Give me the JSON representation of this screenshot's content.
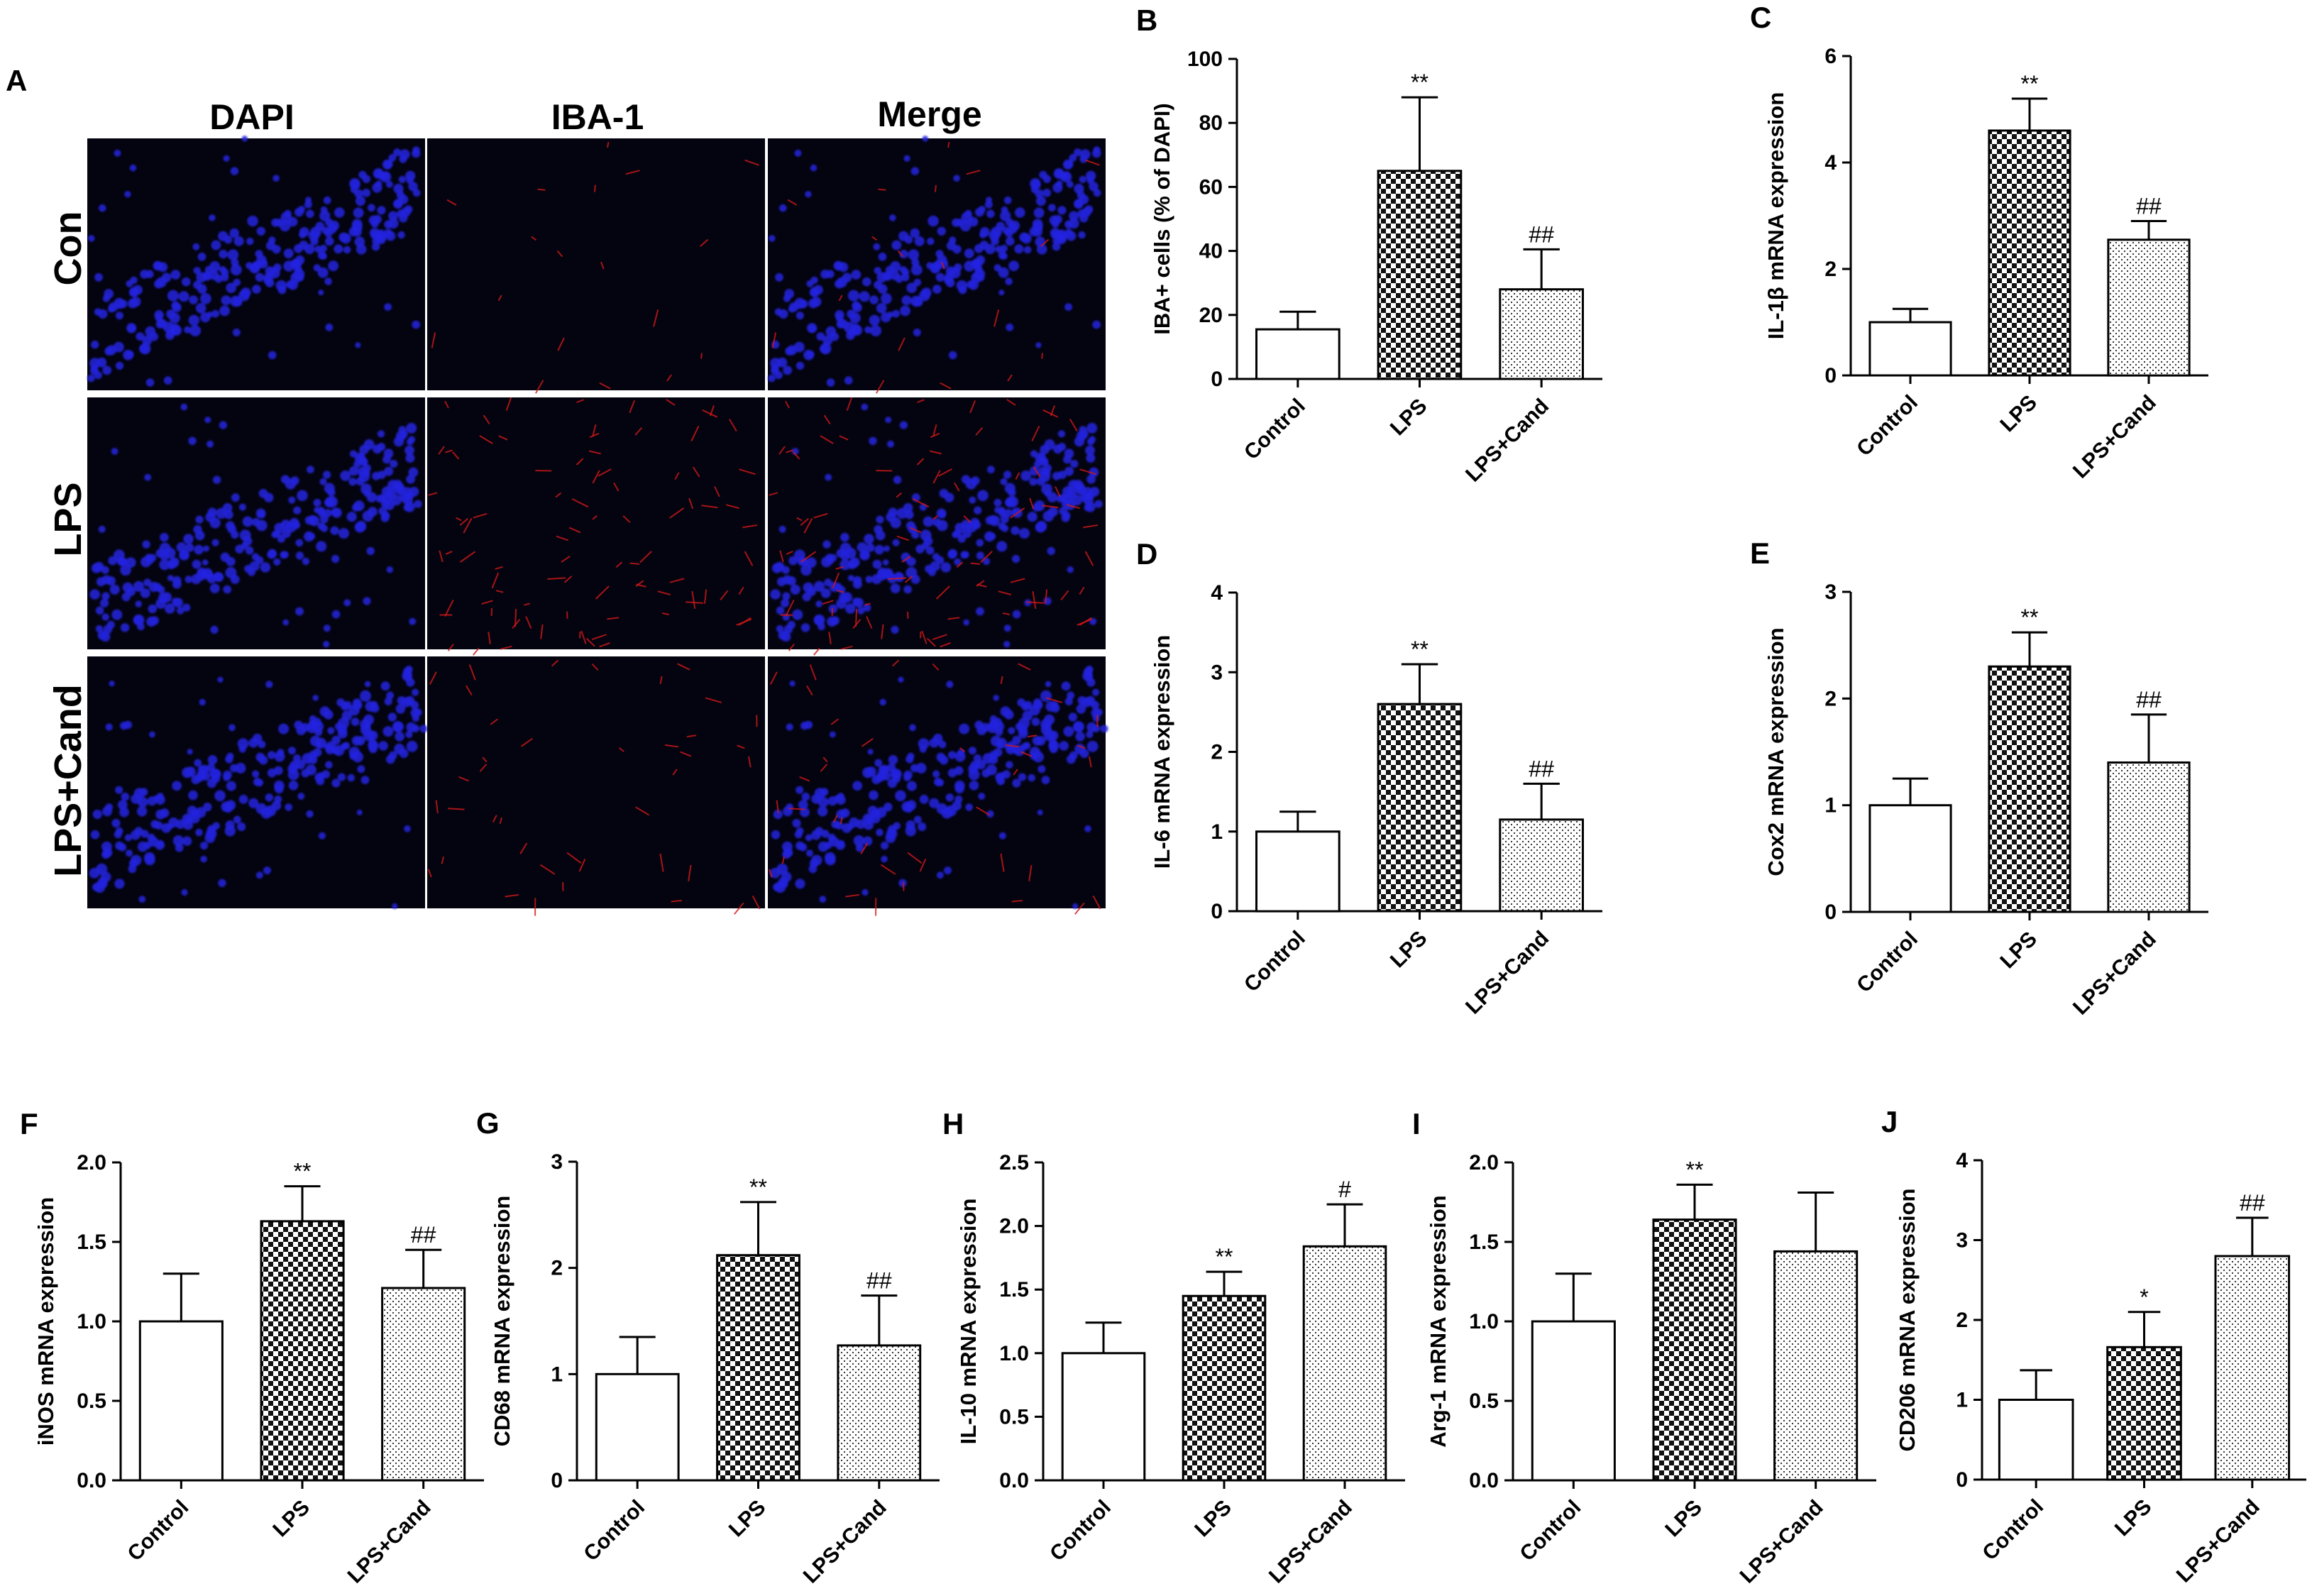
{
  "figure": {
    "micrograph_panel": {
      "letter": "A",
      "column_headers": [
        "DAPI",
        "IBA-1",
        "Merge"
      ],
      "row_labels": [
        "Con",
        "LPS",
        "LPS+Cand"
      ]
    },
    "colors": {
      "nuclei": "#2424e0",
      "iba1_signal": "#d01818",
      "micrograph_bg": "#040410",
      "bar_border": "#000000"
    }
  },
  "chart_data": [
    {
      "panel": "B",
      "type": "bar",
      "title": "",
      "xlabel": "",
      "ylabel": "IBA+ cells (% of DAPI)",
      "categories": [
        "Control",
        "LPS",
        "LPS+Cand"
      ],
      "bar_fills": [
        "white",
        "checkerboard",
        "dots"
      ],
      "values": [
        15.5,
        65,
        28
      ],
      "errors": [
        5.5,
        23,
        12.5
      ],
      "annotations": [
        "",
        "**",
        "##"
      ],
      "ylim": [
        0,
        100
      ],
      "yticks": [
        "0",
        "20",
        "40",
        "60",
        "80",
        "100"
      ],
      "grid": false,
      "legend": false
    },
    {
      "panel": "C",
      "type": "bar",
      "title": "",
      "xlabel": "",
      "ylabel": "IL-1β mRNA expression",
      "categories": [
        "Control",
        "LPS",
        "LPS+Cand"
      ],
      "bar_fills": [
        "white",
        "checkerboard",
        "dots"
      ],
      "values": [
        1.0,
        4.6,
        2.55
      ],
      "errors": [
        0.25,
        0.6,
        0.35
      ],
      "annotations": [
        "",
        "**",
        "##"
      ],
      "ylim": [
        0,
        6
      ],
      "yticks": [
        "0",
        "2",
        "4",
        "6"
      ],
      "grid": false,
      "legend": false
    },
    {
      "panel": "D",
      "type": "bar",
      "title": "",
      "xlabel": "",
      "ylabel": "IL-6 mRNA expression",
      "categories": [
        "Control",
        "LPS",
        "LPS+Cand"
      ],
      "bar_fills": [
        "white",
        "checkerboard",
        "dots"
      ],
      "values": [
        1.0,
        2.6,
        1.15
      ],
      "errors": [
        0.25,
        0.5,
        0.45
      ],
      "annotations": [
        "",
        "**",
        "##"
      ],
      "ylim": [
        0,
        4
      ],
      "yticks": [
        "0",
        "1",
        "2",
        "3",
        "4"
      ],
      "grid": false,
      "legend": false
    },
    {
      "panel": "E",
      "type": "bar",
      "title": "",
      "xlabel": "",
      "ylabel": "Cox2 mRNA expression",
      "categories": [
        "Control",
        "LPS",
        "LPS+Cand"
      ],
      "bar_fills": [
        "white",
        "checkerboard",
        "dots"
      ],
      "values": [
        1.0,
        2.3,
        1.4
      ],
      "errors": [
        0.25,
        0.32,
        0.45
      ],
      "annotations": [
        "",
        "**",
        "##"
      ],
      "ylim": [
        0,
        3
      ],
      "yticks": [
        "0",
        "1",
        "2",
        "3"
      ],
      "grid": false,
      "legend": false
    },
    {
      "panel": "F",
      "type": "bar",
      "title": "",
      "xlabel": "",
      "ylabel": "iNOS mRNA expression",
      "categories": [
        "Control",
        "LPS",
        "LPS+Cand"
      ],
      "bar_fills": [
        "white",
        "checkerboard",
        "dots"
      ],
      "values": [
        1.0,
        1.63,
        1.21
      ],
      "errors": [
        0.3,
        0.22,
        0.24
      ],
      "annotations": [
        "",
        "**",
        "##"
      ],
      "ylim": [
        0,
        2
      ],
      "yticks": [
        "0.0",
        "0.5",
        "1.0",
        "1.5",
        "2.0"
      ],
      "grid": false,
      "legend": false
    },
    {
      "panel": "G",
      "type": "bar",
      "title": "",
      "xlabel": "",
      "ylabel": "CD68 mRNA expression",
      "categories": [
        "Control",
        "LPS",
        "LPS+Cand"
      ],
      "bar_fills": [
        "white",
        "checkerboard",
        "dots"
      ],
      "values": [
        1.0,
        2.12,
        1.27
      ],
      "errors": [
        0.35,
        0.5,
        0.47
      ],
      "annotations": [
        "",
        "**",
        "##"
      ],
      "ylim": [
        0,
        3
      ],
      "yticks": [
        "0",
        "1",
        "2",
        "3"
      ],
      "grid": false,
      "legend": false
    },
    {
      "panel": "H",
      "type": "bar",
      "title": "",
      "xlabel": "",
      "ylabel": "IL-10 mRNA expression",
      "categories": [
        "Control",
        "LPS",
        "LPS+Cand"
      ],
      "bar_fills": [
        "white",
        "checkerboard",
        "dots"
      ],
      "values": [
        1.0,
        1.45,
        1.84
      ],
      "errors": [
        0.24,
        0.19,
        0.33
      ],
      "annotations": [
        "",
        "**",
        "#"
      ],
      "ylim": [
        0,
        2.5
      ],
      "yticks": [
        "0.0",
        "0.5",
        "1.0",
        "1.5",
        "2.0",
        "2.5"
      ],
      "grid": false,
      "legend": false
    },
    {
      "panel": "I",
      "type": "bar",
      "title": "",
      "xlabel": "",
      "ylabel": "Arg-1 mRNA expression",
      "categories": [
        "Control",
        "LPS",
        "LPS+Cand"
      ],
      "bar_fills": [
        "white",
        "checkerboard",
        "dots"
      ],
      "values": [
        1.0,
        1.64,
        1.44
      ],
      "errors": [
        0.3,
        0.22,
        0.37
      ],
      "annotations": [
        "",
        "**",
        ""
      ],
      "ylim": [
        0,
        2
      ],
      "yticks": [
        "0.0",
        "0.5",
        "1.0",
        "1.5",
        "2.0"
      ],
      "grid": false,
      "legend": false
    },
    {
      "panel": "J",
      "type": "bar",
      "title": "",
      "xlabel": "",
      "ylabel": "CD206 mRNA expression",
      "categories": [
        "Control",
        "LPS",
        "LPS+Cand"
      ],
      "bar_fills": [
        "white",
        "checkerboard",
        "dots"
      ],
      "values": [
        1.0,
        1.66,
        2.8
      ],
      "errors": [
        0.37,
        0.44,
        0.48
      ],
      "annotations": [
        "",
        "*",
        "##"
      ],
      "ylim": [
        0,
        4
      ],
      "yticks": [
        "0",
        "1",
        "2",
        "3",
        "4"
      ],
      "grid": false,
      "legend": false
    }
  ]
}
